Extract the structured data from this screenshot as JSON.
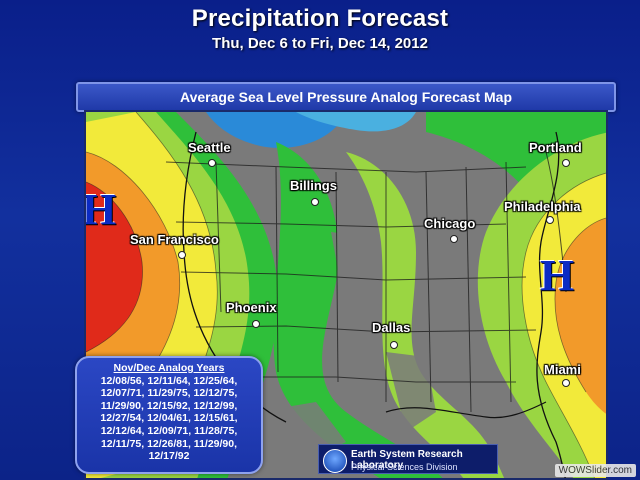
{
  "header": {
    "title": "Precipitation Forecast",
    "subtitle": "Thu, Dec 6 to Fri, Dec 14, 2012"
  },
  "map": {
    "heading": "Average Sea Level Pressure Analog Forecast Map",
    "cities": [
      {
        "id": "seattle",
        "label": "Seattle"
      },
      {
        "id": "billings",
        "label": "Billings"
      },
      {
        "id": "portland",
        "label": "Portland"
      },
      {
        "id": "philadelphia",
        "label": "Philadelphia"
      },
      {
        "id": "chicago",
        "label": "Chicago"
      },
      {
        "id": "san-francisco",
        "label": "San Francisco"
      },
      {
        "id": "phoenix",
        "label": "Phoenix"
      },
      {
        "id": "dallas",
        "label": "Dallas"
      },
      {
        "id": "miami",
        "label": "Miami"
      }
    ],
    "highs": [
      {
        "id": "west",
        "label": "H"
      },
      {
        "id": "east",
        "label": "H"
      }
    ],
    "colors": {
      "high_red": "#e02a1a",
      "orange": "#f29a2a",
      "yellow": "#f2ea3a",
      "light_green": "#9ad642",
      "green": "#2fbf3a",
      "blue": "#2a8ad8",
      "land_gray": "#7a7a7a"
    }
  },
  "analog_years": {
    "title": "Nov/Dec Analog Years",
    "lines": [
      "12/08/56, 12/11/64, 12/25/64,",
      "12/07/71, 11/29/75, 12/12/75,",
      "11/29/90, 12/15/92, 12/12/99,",
      "12/27/54, 12/04/61, 12/15/61,",
      "12/12/64, 12/09/71, 11/28/75,",
      "12/11/75, 12/26/81, 11/29/90,",
      "12/17/92"
    ]
  },
  "credit": {
    "lab": "Earth System Research Laboratory",
    "division": "Physical Sciences Division"
  },
  "watermark": "WOWSlider.com"
}
